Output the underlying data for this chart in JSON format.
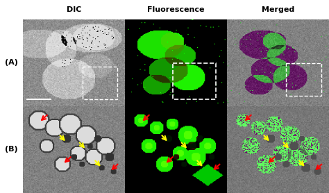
{
  "title_row": [
    "DIC",
    "Fluorescence",
    "Merged"
  ],
  "row_labels": [
    "(A)",
    "(B)"
  ],
  "fig_bg": "#ffffff",
  "panel_bg_A_DIC": "#a0a0a0",
  "panel_bg_A_Fluor": "#000000",
  "panel_bg_A_Merged": "#606060",
  "panel_bg_B_DIC": "#909090",
  "panel_bg_B_Fluor": "#050a05",
  "panel_bg_B_Merged": "#808080",
  "green_color": "#00ff00",
  "yellow_arrow_color": "#ffff00",
  "red_arrow_color": "#ff0000",
  "dashed_box_color": "#ffffff",
  "figsize": [
    4.74,
    2.78
  ],
  "dpi": 100
}
